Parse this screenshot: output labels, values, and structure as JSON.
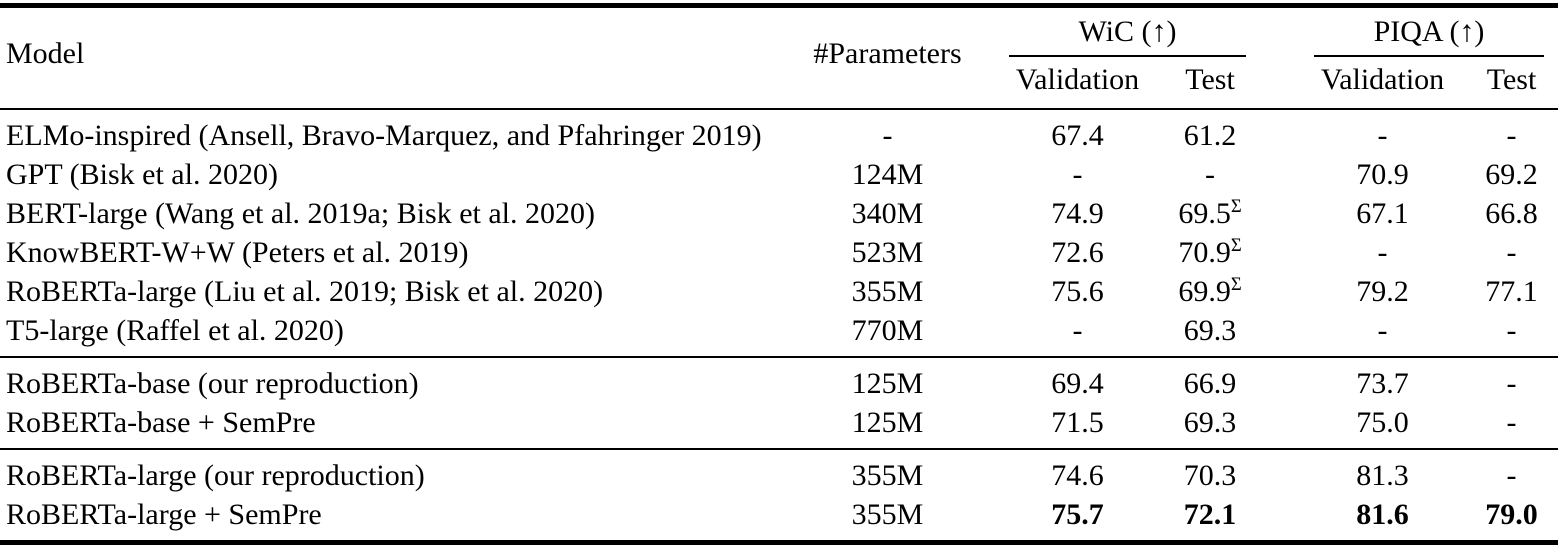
{
  "colors": {
    "text": "#000000",
    "background": "#ffffff",
    "rule": "#000000"
  },
  "header": {
    "model": "Model",
    "params": "#Parameters",
    "wic": {
      "label": "WiC (↑)",
      "sub": [
        "Validation",
        "Test"
      ]
    },
    "piqa": {
      "label": "PIQA (↑)",
      "sub": [
        "Validation",
        "Test"
      ]
    }
  },
  "sections": [
    {
      "name": "published-baselines",
      "rows": [
        {
          "model": "ELMo-inspired (Ansell, Bravo-Marquez, and Pfahringer 2019)",
          "params": "-",
          "wic_validation": "67.4",
          "wic_test": "61.2",
          "piqa_validation": "-",
          "piqa_test": "-"
        },
        {
          "model": "GPT (Bisk et al. 2020)",
          "params": "124M",
          "wic_validation": "-",
          "wic_test": "-",
          "piqa_validation": "70.9",
          "piqa_test": "69.2"
        },
        {
          "model": "BERT-large (Wang et al. 2019a; Bisk et al. 2020)",
          "params": "340M",
          "wic_validation": "74.9",
          "wic_test": "69.5",
          "wic_test_sup": "Σ",
          "piqa_validation": "67.1",
          "piqa_test": "66.8"
        },
        {
          "model": "KnowBERT-W+W (Peters et al. 2019)",
          "params": "523M",
          "wic_validation": "72.6",
          "wic_test": "70.9",
          "wic_test_sup": "Σ",
          "piqa_validation": "-",
          "piqa_test": "-"
        },
        {
          "model": "RoBERTa-large (Liu et al. 2019; Bisk et al. 2020)",
          "params": "355M",
          "wic_validation": "75.6",
          "wic_test": "69.9",
          "wic_test_sup": "Σ",
          "piqa_validation": "79.2",
          "piqa_test": "77.1"
        },
        {
          "model": "T5-large (Raffel et al. 2020)",
          "params": "770M",
          "wic_validation": "-",
          "wic_test": "69.3",
          "piqa_validation": "-",
          "piqa_test": "-"
        }
      ]
    },
    {
      "name": "roberta-base-reproduction",
      "rows": [
        {
          "model": "RoBERTa-base (our reproduction)",
          "params": "125M",
          "wic_validation": "69.4",
          "wic_test": "66.9",
          "piqa_validation": "73.7",
          "piqa_test": "-"
        },
        {
          "model": "RoBERTa-base + SemPre",
          "params": "125M",
          "wic_validation": "71.5",
          "wic_test": "69.3",
          "piqa_validation": "75.0",
          "piqa_test": "-"
        }
      ]
    },
    {
      "name": "roberta-large-reproduction",
      "rows": [
        {
          "model": "RoBERTa-large (our reproduction)",
          "params": "355M",
          "wic_validation": "74.6",
          "wic_test": "70.3",
          "piqa_validation": "81.3",
          "piqa_test": "-"
        },
        {
          "model": "RoBERTa-large + SemPre",
          "params": "355M",
          "wic_validation": "75.7",
          "wic_test": "72.1",
          "piqa_validation": "81.6",
          "piqa_test": "79.0",
          "bold": [
            "wic_validation",
            "wic_test",
            "piqa_validation",
            "piqa_test"
          ]
        }
      ]
    }
  ]
}
